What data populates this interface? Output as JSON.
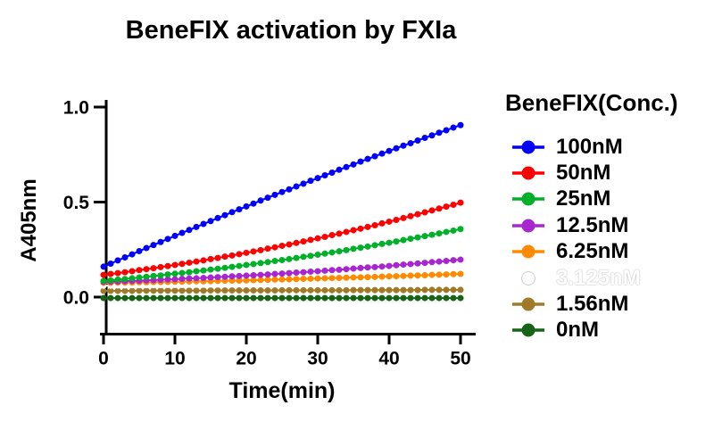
{
  "page": {
    "background": "#ffffff",
    "text_color": "#000000"
  },
  "chart_data": {
    "type": "scatter",
    "title": "BeneFIX activation by FXIa",
    "xlabel": "Time(min)",
    "ylabel": "A405nm",
    "legend_title": "BeneFIX(Conc.)",
    "legend_position": "right",
    "grid": false,
    "xlim": [
      0,
      52
    ],
    "ylim": [
      -0.2,
      1.0
    ],
    "x_ticks": [
      {
        "value": 0,
        "label": "0"
      },
      {
        "value": 10,
        "label": "10"
      },
      {
        "value": 20,
        "label": "20"
      },
      {
        "value": 30,
        "label": "30"
      },
      {
        "value": 40,
        "label": "40"
      },
      {
        "value": 50,
        "label": "50"
      }
    ],
    "y_ticks": [
      {
        "value": 1.0,
        "label": "1.0"
      },
      {
        "value": 0.5,
        "label": "0.5"
      },
      {
        "value": 0.0,
        "label": "0.0"
      }
    ],
    "x": [
      0,
      1,
      2,
      3,
      4,
      5,
      6,
      7,
      8,
      9,
      10,
      11,
      12,
      13,
      14,
      15,
      16,
      17,
      18,
      19,
      20,
      21,
      22,
      23,
      24,
      25,
      26,
      27,
      28,
      29,
      30,
      31,
      32,
      33,
      34,
      35,
      36,
      37,
      38,
      39,
      40,
      41,
      42,
      43,
      44,
      45,
      46,
      47,
      48,
      49,
      50
    ],
    "series": [
      {
        "label": "100nM",
        "color": "#0000FF",
        "label_color": "#000000",
        "values": [
          0.16,
          0.176,
          0.193,
          0.209,
          0.225,
          0.242,
          0.258,
          0.274,
          0.29,
          0.306,
          0.322,
          0.338,
          0.353,
          0.369,
          0.385,
          0.4,
          0.416,
          0.431,
          0.447,
          0.462,
          0.477,
          0.492,
          0.508,
          0.523,
          0.538,
          0.553,
          0.567,
          0.582,
          0.597,
          0.612,
          0.626,
          0.641,
          0.655,
          0.67,
          0.684,
          0.698,
          0.713,
          0.727,
          0.741,
          0.755,
          0.769,
          0.783,
          0.797,
          0.81,
          0.824,
          0.838,
          0.851,
          0.865,
          0.878,
          0.892,
          0.905
        ]
      },
      {
        "label": "50nM",
        "color": "#FF0000",
        "label_color": "#000000",
        "values": [
          0.117,
          0.122,
          0.126,
          0.131,
          0.136,
          0.142,
          0.147,
          0.152,
          0.158,
          0.163,
          0.169,
          0.175,
          0.181,
          0.187,
          0.193,
          0.2,
          0.206,
          0.213,
          0.219,
          0.226,
          0.233,
          0.24,
          0.247,
          0.255,
          0.262,
          0.27,
          0.277,
          0.285,
          0.293,
          0.301,
          0.309,
          0.317,
          0.326,
          0.334,
          0.343,
          0.352,
          0.36,
          0.369,
          0.378,
          0.388,
          0.397,
          0.406,
          0.416,
          0.426,
          0.436,
          0.446,
          0.456,
          0.466,
          0.476,
          0.486,
          0.497
        ]
      },
      {
        "label": "25nM",
        "color": "#00B028",
        "label_color": "#000000",
        "values": [
          0.085,
          0.088,
          0.092,
          0.095,
          0.099,
          0.103,
          0.107,
          0.111,
          0.114,
          0.119,
          0.123,
          0.127,
          0.131,
          0.136,
          0.14,
          0.145,
          0.149,
          0.154,
          0.159,
          0.164,
          0.169,
          0.174,
          0.179,
          0.184,
          0.19,
          0.195,
          0.2,
          0.206,
          0.212,
          0.217,
          0.223,
          0.229,
          0.235,
          0.241,
          0.247,
          0.254,
          0.26,
          0.266,
          0.273,
          0.28,
          0.286,
          0.293,
          0.3,
          0.307,
          0.314,
          0.321,
          0.328,
          0.335,
          0.343,
          0.35,
          0.358
        ]
      },
      {
        "label": "12.5nM",
        "color": "#A826D1",
        "label_color": "#000000",
        "values": [
          0.08,
          0.081,
          0.082,
          0.084,
          0.085,
          0.086,
          0.088,
          0.089,
          0.091,
          0.093,
          0.094,
          0.096,
          0.098,
          0.099,
          0.101,
          0.103,
          0.105,
          0.107,
          0.109,
          0.111,
          0.113,
          0.115,
          0.117,
          0.119,
          0.122,
          0.124,
          0.126,
          0.129,
          0.131,
          0.134,
          0.136,
          0.139,
          0.142,
          0.144,
          0.147,
          0.15,
          0.153,
          0.156,
          0.158,
          0.161,
          0.164,
          0.168,
          0.171,
          0.174,
          0.177,
          0.18,
          0.184,
          0.187,
          0.19,
          0.194,
          0.197
        ]
      },
      {
        "label": "6.25nM",
        "color": "#FF8A00",
        "label_color": "#000000",
        "values": [
          0.075,
          0.075,
          0.076,
          0.076,
          0.077,
          0.078,
          0.078,
          0.079,
          0.079,
          0.08,
          0.081,
          0.081,
          0.082,
          0.083,
          0.083,
          0.084,
          0.085,
          0.086,
          0.087,
          0.087,
          0.088,
          0.089,
          0.09,
          0.091,
          0.092,
          0.093,
          0.094,
          0.095,
          0.096,
          0.097,
          0.098,
          0.099,
          0.1,
          0.101,
          0.102,
          0.103,
          0.104,
          0.105,
          0.106,
          0.108,
          0.109,
          0.11,
          0.111,
          0.113,
          0.114,
          0.115,
          0.117,
          0.118,
          0.119,
          0.121,
          0.122
        ]
      },
      {
        "label": "3.125nM",
        "color": "#FFFFFF",
        "label_color": "#FFFFFF",
        "values": [
          0.06,
          0.06,
          0.061,
          0.061,
          0.062,
          0.062,
          0.062,
          0.063,
          0.063,
          0.064,
          0.064,
          0.064,
          0.065,
          0.065,
          0.066,
          0.066,
          0.066,
          0.067,
          0.067,
          0.068,
          0.068,
          0.068,
          0.069,
          0.069,
          0.07,
          0.07,
          0.07,
          0.071,
          0.071,
          0.072,
          0.072,
          0.072,
          0.073,
          0.073,
          0.074,
          0.074,
          0.074,
          0.075,
          0.075,
          0.076,
          0.076,
          0.076,
          0.077,
          0.077,
          0.078,
          0.078,
          0.078,
          0.079,
          0.079,
          0.08,
          0.08
        ]
      },
      {
        "label": "1.56nM",
        "color": "#A17A28",
        "label_color": "#000000",
        "values": [
          0.033,
          0.033,
          0.033,
          0.033,
          0.033,
          0.034,
          0.034,
          0.034,
          0.034,
          0.034,
          0.034,
          0.034,
          0.034,
          0.034,
          0.034,
          0.035,
          0.035,
          0.035,
          0.035,
          0.035,
          0.035,
          0.035,
          0.035,
          0.035,
          0.035,
          0.036,
          0.036,
          0.036,
          0.036,
          0.036,
          0.036,
          0.036,
          0.036,
          0.036,
          0.036,
          0.037,
          0.037,
          0.037,
          0.037,
          0.037,
          0.037,
          0.037,
          0.037,
          0.037,
          0.037,
          0.038,
          0.038,
          0.038,
          0.038,
          0.038,
          0.038
        ]
      },
      {
        "label": "0nM",
        "color": "#166416",
        "label_color": "#000000",
        "values": [
          -0.005,
          -0.005,
          -0.005,
          -0.005,
          -0.005,
          -0.005,
          -0.005,
          -0.005,
          -0.005,
          -0.005,
          -0.005,
          -0.005,
          -0.005,
          -0.005,
          -0.005,
          -0.005,
          -0.005,
          -0.005,
          -0.005,
          -0.005,
          -0.005,
          -0.005,
          -0.005,
          -0.005,
          -0.005,
          -0.005,
          -0.005,
          -0.005,
          -0.005,
          -0.005,
          -0.005,
          -0.005,
          -0.005,
          -0.005,
          -0.005,
          -0.005,
          -0.005,
          -0.005,
          -0.005,
          -0.005,
          -0.005,
          -0.005,
          -0.005,
          -0.005,
          -0.005,
          -0.005,
          -0.005,
          -0.005,
          -0.005,
          -0.005,
          -0.005
        ]
      }
    ]
  }
}
